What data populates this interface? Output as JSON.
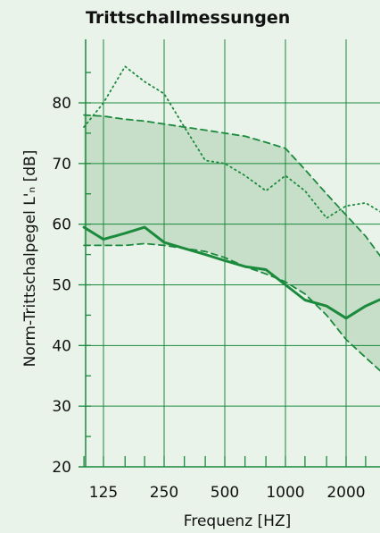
{
  "chart_data": {
    "type": "line",
    "title": "Trittschallmessungen",
    "xlabel": "Frequenz [HZ]",
    "ylabel": "Norm-Trittschalpegel L'ₙ [dB]",
    "x_scale": "log",
    "x": [
      100,
      125,
      160,
      200,
      250,
      315,
      400,
      500,
      630,
      800,
      1000,
      1250,
      1600,
      2000,
      2500,
      3150
    ],
    "x_ticks": [
      125,
      250,
      500,
      1000,
      2000
    ],
    "x_tick_labels": [
      "125",
      "250",
      "500",
      "1000",
      "2000"
    ],
    "y_ticks": [
      20,
      30,
      40,
      50,
      60,
      70,
      80
    ],
    "ylim": [
      20,
      90
    ],
    "grid": true,
    "colors": {
      "line": "#1b8a3c",
      "band": "#c7dfc9",
      "grid": "#1b8a3c",
      "background": "#e9f3ea"
    },
    "series": [
      {
        "style": "dotted",
        "values": [
          76,
          80,
          86,
          83.5,
          81.5,
          76,
          70.5,
          70,
          68,
          65.5,
          68,
          65.5,
          61,
          63,
          63.5,
          61.5
        ]
      },
      {
        "style": "dashed",
        "values": [
          78,
          77.8,
          77.3,
          77,
          76.5,
          76,
          75.5,
          75,
          74.5,
          73.5,
          72.5,
          69,
          65,
          61.5,
          58,
          53.5
        ]
      },
      {
        "style": "dashed",
        "values": [
          56.5,
          56.5,
          56.5,
          56.8,
          56.5,
          56,
          55.5,
          54.5,
          53,
          51.8,
          50.5,
          48.5,
          45,
          41,
          38,
          35
        ]
      },
      {
        "style": "solid",
        "values": [
          59.5,
          57.5,
          58.5,
          59.5,
          57,
          56,
          55,
          54,
          53,
          52.5,
          50,
          47.5,
          46.5,
          44.5,
          46.5,
          48
        ]
      }
    ]
  }
}
